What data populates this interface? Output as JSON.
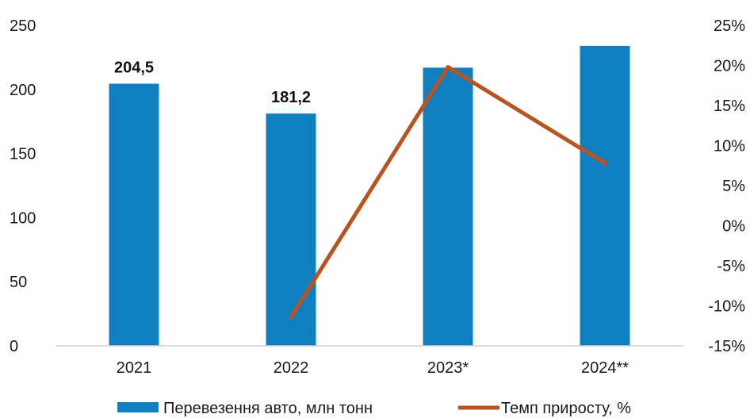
{
  "chart_data": {
    "type": "bar+line",
    "categories": [
      "2021",
      "2022",
      "2023*",
      "2024**"
    ],
    "series": [
      {
        "name": "Перевезення авто, млн тонн",
        "type": "bar",
        "axis": "left",
        "color": "#0F7FBF",
        "values": [
          204.5,
          181.2,
          217,
          234
        ],
        "data_labels": [
          "204,5",
          "181,2",
          null,
          null
        ]
      },
      {
        "name": "Темп приросту, %",
        "type": "line",
        "axis": "right",
        "color": "#B9531F",
        "values": [
          null,
          -11.4,
          19.8,
          7.8
        ]
      }
    ],
    "y_left": {
      "min": 0,
      "max": 250,
      "ticks": [
        "0",
        "50",
        "100",
        "150",
        "200",
        "250"
      ]
    },
    "y_right": {
      "min": -15,
      "max": 25,
      "ticks": [
        "-15%",
        "-10%",
        "-5%",
        "0%",
        "5%",
        "10%",
        "15%",
        "20%",
        "25%"
      ]
    },
    "grid": false,
    "legend_position": "bottom"
  }
}
